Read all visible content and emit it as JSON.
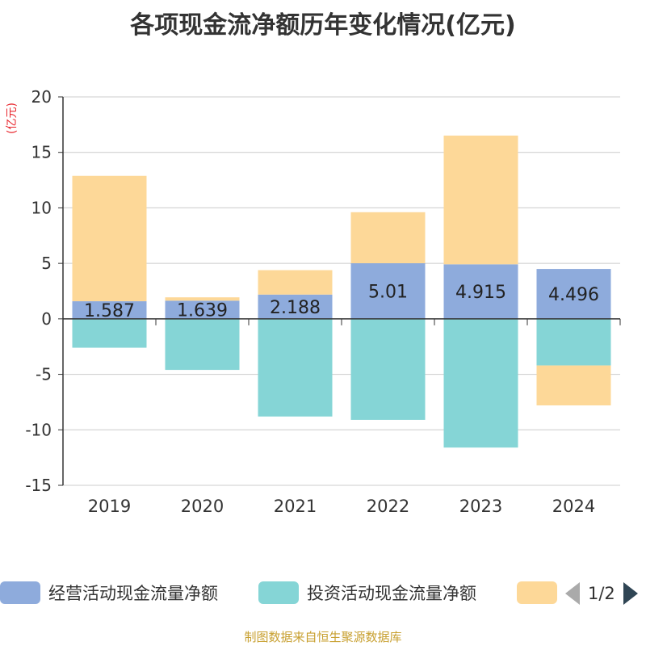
{
  "title": "各项现金流净额历年变化情况(亿元)",
  "unit_label": "(亿元)",
  "source": "制图数据来自恒生聚源数据库",
  "legend": {
    "items": [
      {
        "label": "经营活动现金流量净额",
        "color": "#8eabdc"
      },
      {
        "label": "投资活动现金流量净额",
        "color": "#85d5d6"
      },
      {
        "label": "",
        "color": "#fdd898"
      }
    ],
    "page": "1/2"
  },
  "chart_data": {
    "type": "bar",
    "stacked": true,
    "categories": [
      "2019",
      "2020",
      "2021",
      "2022",
      "2023",
      "2024"
    ],
    "series": [
      {
        "name": "经营活动现金流量净额",
        "color": "#8eabdc",
        "values": [
          1.587,
          1.639,
          2.188,
          5.01,
          4.915,
          4.496
        ],
        "labels": [
          "1.587",
          "1.639",
          "2.188",
          "5.01",
          "4.915",
          "4.496"
        ]
      },
      {
        "name": "投资活动现金流量净额",
        "color": "#85d5d6",
        "values": [
          -2.6,
          -4.6,
          -8.8,
          -9.1,
          -11.6,
          -4.2
        ]
      },
      {
        "name": "",
        "color": "#fdd898",
        "values": [
          11.3,
          0.3,
          2.2,
          4.6,
          11.6,
          -3.6
        ]
      }
    ],
    "ylim": [
      -15,
      20
    ],
    "yticks": [
      -15,
      -10,
      -5,
      0,
      5,
      10,
      15,
      20
    ],
    "grid": true
  }
}
